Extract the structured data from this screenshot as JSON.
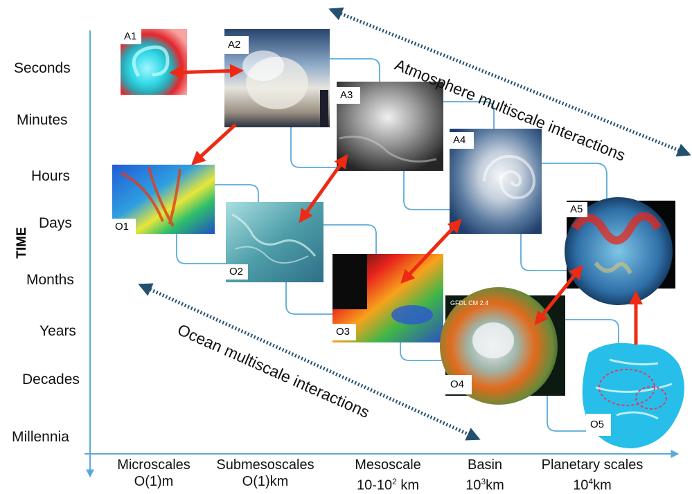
{
  "axis": {
    "time_title": "TIME",
    "time_labels": [
      "Seconds",
      "Minutes",
      "Hours",
      "Days",
      "Months",
      "Years",
      "Decades",
      "Millennia"
    ],
    "scale_labels": [
      {
        "name": "Microscales",
        "value": "O(1)m"
      },
      {
        "name": "Submesoscales",
        "value": "O(1)km"
      },
      {
        "name": "Mesoscale",
        "value_prefix": "10-10",
        "value_sup": "2",
        "value_suffix": " km"
      },
      {
        "name": "Basin",
        "value_prefix": "10",
        "value_sup": "3",
        "value_suffix": "km"
      },
      {
        "name": "Planetary scales",
        "value_prefix": "10",
        "value_sup": "4",
        "value_suffix": "km"
      }
    ]
  },
  "annotations": {
    "atmosphere": "Atmosphere multiscale interactions",
    "ocean": "Ocean multiscale interactions"
  },
  "panels": {
    "A1": "A1",
    "A2": "A2",
    "A3": "A3",
    "A4": "A4",
    "A5": "A5",
    "O1": "O1",
    "O2": "O2",
    "O3": "O3",
    "O4": "O4",
    "O5": "O5"
  },
  "inset_text": {
    "o4_title": "GFDL CM 2.4"
  },
  "colors": {
    "axis": "#5aaad9",
    "connector": "#5aaad9",
    "interaction_arrow": "#ee2a14",
    "diagonal_arrow": "#23506e"
  }
}
